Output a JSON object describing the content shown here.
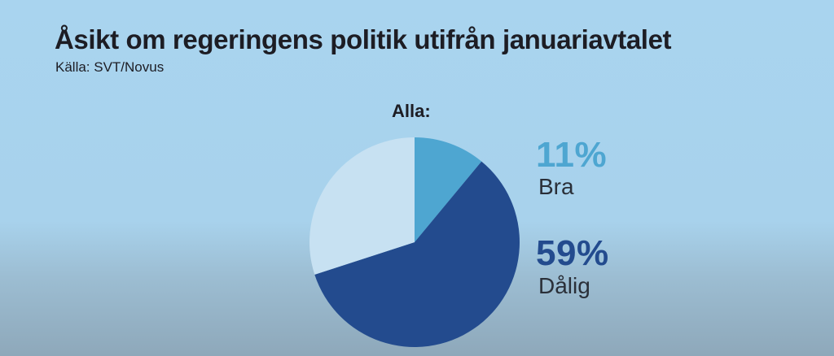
{
  "header": {
    "title": "Åsikt om regeringens politik utifrån januariavtalet",
    "source": "Källa: SVT/Novus"
  },
  "chart_data": {
    "type": "pie",
    "title": "Åsikt om regeringens politik utifrån januariavtalet",
    "subtitle": "Alla:",
    "slices": [
      {
        "label": "Bra",
        "value": 11,
        "display": "11%",
        "color": "#4ea6d1"
      },
      {
        "label": "Dålig",
        "value": 59,
        "display": "59%",
        "color": "#234b8e"
      },
      {
        "label": "",
        "value": 30,
        "color": "#c7e1f2"
      }
    ],
    "legend_position": "right",
    "grid": false
  }
}
